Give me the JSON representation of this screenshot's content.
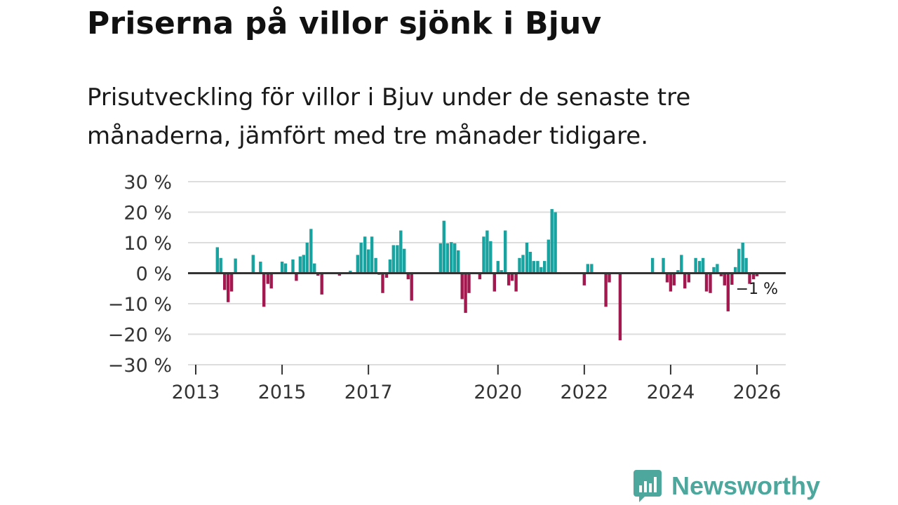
{
  "header": {
    "title": "Priserna på villor sjönk i Bjuv",
    "subtitle": "Prisutveckling för villor i Bjuv under de senaste tre månaderna, jämfört med tre månader tidigare."
  },
  "colors": {
    "positive": "#18a3a0",
    "negative": "#a3194f",
    "grid": "#dddddd",
    "zero_line": "#333333"
  },
  "chart_data": {
    "type": "bar",
    "title": "Priserna på villor sjönk i Bjuv",
    "ylabel": "",
    "xlabel": "",
    "ylim": [
      -30,
      30
    ],
    "y_ticks": [
      30,
      20,
      10,
      0,
      -10,
      -20,
      -30
    ],
    "y_tick_labels": [
      "30 %",
      "20 %",
      "10 %",
      "0 %",
      "−10 %",
      "−20 %",
      "−30 %"
    ],
    "x_ticks": [
      2013,
      2015,
      2017,
      2020,
      2022,
      2024,
      2026
    ],
    "x_tick_labels": [
      "2013",
      "2015",
      "2017",
      "2020",
      "2022",
      "2024",
      "2026"
    ],
    "xlim": [
      2013.0,
      2026.7
    ],
    "annotation": {
      "label": "−1 %",
      "value": -1
    },
    "series": [
      {
        "name": "Prisutveckling",
        "x": [
          2013.5,
          2013.58,
          2013.67,
          2013.75,
          2013.83,
          2013.92,
          2014.33,
          2014.5,
          2014.58,
          2014.67,
          2014.75,
          2015.0,
          2015.08,
          2015.25,
          2015.33,
          2015.42,
          2015.5,
          2015.58,
          2015.67,
          2015.75,
          2015.83,
          2015.92,
          2016.0,
          2016.33,
          2016.58,
          2016.75,
          2016.83,
          2016.92,
          2017.0,
          2017.08,
          2017.17,
          2017.25,
          2017.33,
          2017.42,
          2017.5,
          2017.58,
          2017.67,
          2017.75,
          2017.83,
          2017.92,
          2018.0,
          2018.67,
          2018.75,
          2018.83,
          2018.92,
          2019.0,
          2019.08,
          2019.17,
          2019.25,
          2019.33,
          2019.42,
          2019.58,
          2019.67,
          2019.75,
          2019.83,
          2019.92,
          2020.0,
          2020.08,
          2020.17,
          2020.25,
          2020.33,
          2020.42,
          2020.5,
          2020.58,
          2020.67,
          2020.75,
          2020.83,
          2020.92,
          2021.0,
          2021.08,
          2021.17,
          2021.25,
          2021.33,
          2021.42,
          2022.0,
          2022.08,
          2022.17,
          2022.5,
          2022.58,
          2022.83,
          2023.58,
          2023.83,
          2023.92,
          2024.0,
          2024.08,
          2024.17,
          2024.25,
          2024.33,
          2024.42,
          2024.58,
          2024.67,
          2024.75,
          2024.83,
          2024.92,
          2025.0,
          2025.08,
          2025.17,
          2025.25,
          2025.33,
          2025.42,
          2025.5,
          2025.58,
          2025.67,
          2025.75,
          2025.83,
          2025.92,
          2026.0
        ],
        "values": [
          8.5,
          5.0,
          -5.5,
          -9.5,
          -6.0,
          4.8,
          6.0,
          3.8,
          -11.0,
          -3.5,
          -5.0,
          3.8,
          3.2,
          4.5,
          -2.5,
          5.5,
          6.0,
          10.0,
          14.5,
          3.2,
          -0.8,
          -7.0,
          0.2,
          -0.8,
          0.8,
          6.0,
          10.0,
          12.0,
          7.8,
          12.0,
          5.0,
          -0.5,
          -6.5,
          -1.5,
          4.5,
          9.2,
          9.2,
          14.0,
          8.0,
          -2.0,
          -9.0,
          9.8,
          17.2,
          9.8,
          10.2,
          9.8,
          7.5,
          -8.5,
          -13.0,
          -6.5,
          -0.3,
          -2.0,
          12.0,
          14.0,
          10.5,
          -6.0,
          4.0,
          1.0,
          14.0,
          -4.0,
          -2.5,
          -6.0,
          5.0,
          6.0,
          10.0,
          7.0,
          4.0,
          4.0,
          2.0,
          4.0,
          11.0,
          21.0,
          20.0,
          -0.3,
          -4.0,
          3.0,
          3.0,
          -11.0,
          -3.0,
          -22.0,
          5.0,
          5.0,
          -3.0,
          -6.0,
          -4.0,
          1.0,
          6.0,
          -5.0,
          -3.0,
          5.0,
          4.0,
          5.0,
          -6.0,
          -6.5,
          2.0,
          3.0,
          -1.0,
          -4.0,
          -12.5,
          -3.8,
          2.0,
          8.0,
          10.0,
          5.0,
          -3.5,
          -2.0,
          -1.0
        ]
      }
    ]
  },
  "branding": {
    "logo_text": "Newsworthy",
    "logo_icon": "bar-chart-speech-bubble-icon"
  }
}
